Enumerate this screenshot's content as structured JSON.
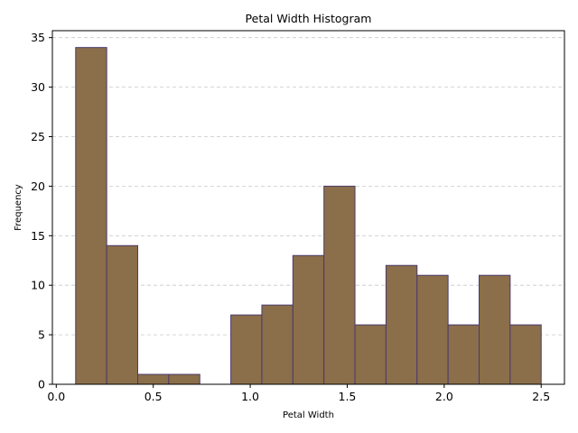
{
  "chart_data": {
    "type": "bar",
    "title": "Petal Width Histogram",
    "xlabel": "Petal Width",
    "ylabel": "Frequency",
    "bin_edges": [
      0.1,
      0.26,
      0.42,
      0.58,
      0.74,
      0.9,
      1.06,
      1.22,
      1.38,
      1.54,
      1.7,
      1.86,
      2.02,
      2.18,
      2.34,
      2.5
    ],
    "values": [
      34,
      14,
      1,
      1,
      0,
      7,
      8,
      13,
      20,
      6,
      12,
      11,
      6,
      11,
      6
    ],
    "xlim": [
      -0.02,
      2.62
    ],
    "ylim": [
      0,
      35.7
    ],
    "xticks": [
      0.0,
      0.5,
      1.0,
      1.5,
      2.0,
      2.5
    ],
    "xtick_labels": [
      "0.0",
      "0.5",
      "1.0",
      "1.5",
      "2.0",
      "2.5"
    ],
    "yticks": [
      0,
      5,
      10,
      15,
      20,
      25,
      30,
      35
    ],
    "ytick_labels": [
      "0",
      "5",
      "10",
      "15",
      "20",
      "25",
      "30",
      "35"
    ],
    "grid": "y",
    "colors": {
      "bar_fill": "#8b6e4a",
      "bar_edge": "#4b3a6b",
      "grid": "#c8c8c8",
      "axis": "#000000"
    }
  }
}
